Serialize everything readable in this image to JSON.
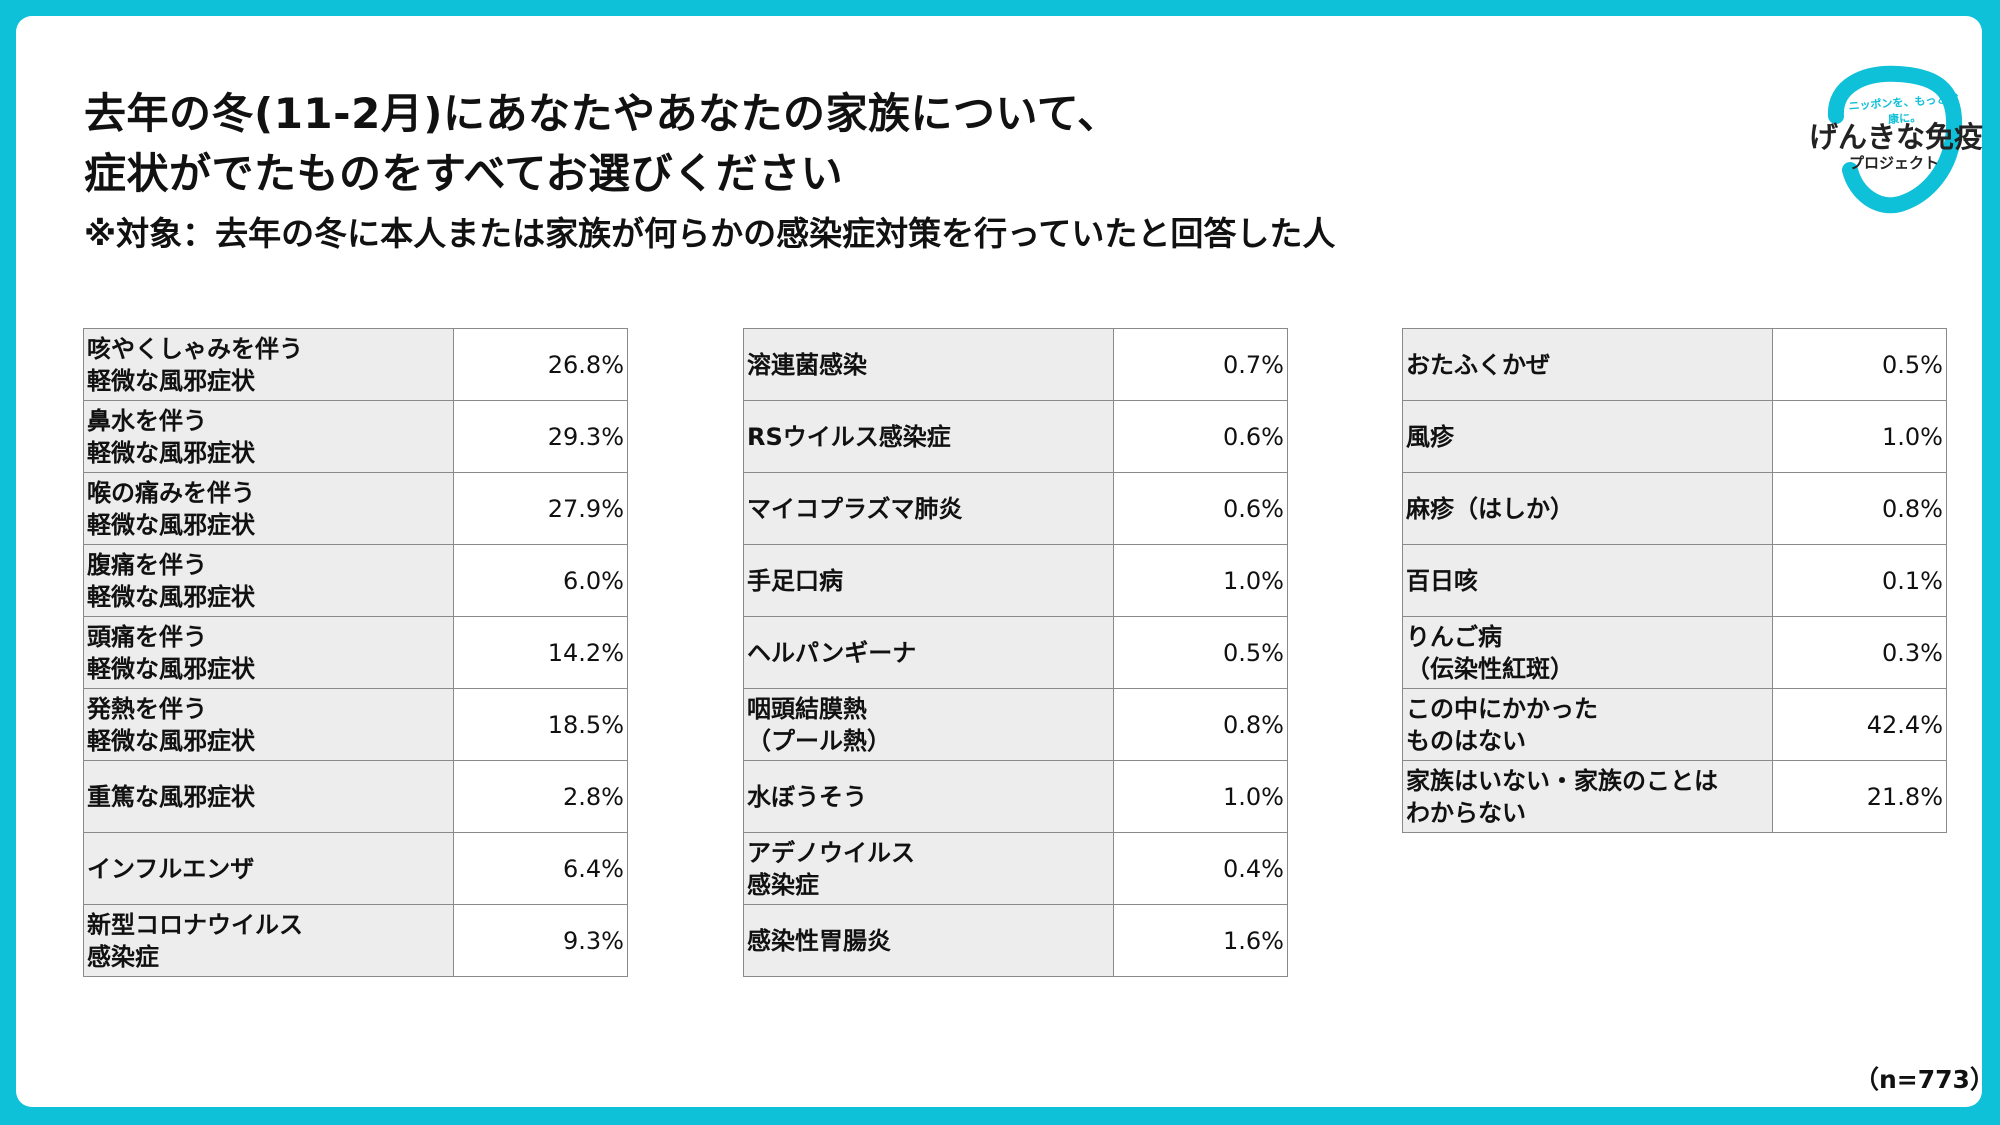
{
  "title": {
    "line1": "去年の冬(11-2月)にあなたやあなたの家族について、",
    "line2": "症状がでたものをすべてお選びください",
    "subtitle": "※対象：去年の冬に本人または家族が何らかの感染症対策を行っていたと回答した人"
  },
  "logo": {
    "tagline": "ニッポンを、もっと健康に。",
    "name": "げんきな免疫",
    "sub": "プロジェクト",
    "color": "#0ec0d8"
  },
  "tables": [
    {
      "rows": [
        {
          "label": "咳やくしゃみを伴う\n軽微な風邪症状",
          "value": "26.8%"
        },
        {
          "label": "鼻水を伴う\n軽微な風邪症状",
          "value": "29.3%"
        },
        {
          "label": "喉の痛みを伴う\n軽微な風邪症状",
          "value": "27.9%"
        },
        {
          "label": "腹痛を伴う\n軽微な風邪症状",
          "value": "6.0%"
        },
        {
          "label": "頭痛を伴う\n軽微な風邪症状",
          "value": "14.2%"
        },
        {
          "label": "発熱を伴う\n軽微な風邪症状",
          "value": "18.5%"
        },
        {
          "label": "重篤な風邪症状",
          "value": "2.8%"
        },
        {
          "label": "インフルエンザ",
          "value": "6.4%"
        },
        {
          "label": "新型コロナウイルス\n感染症",
          "value": "9.3%"
        }
      ]
    },
    {
      "rows": [
        {
          "label": "溶連菌感染",
          "value": "0.7%"
        },
        {
          "label": "RSウイルス感染症",
          "value": "0.6%"
        },
        {
          "label": "マイコプラズマ肺炎",
          "value": "0.6%"
        },
        {
          "label": "手足口病",
          "value": "1.0%"
        },
        {
          "label": "ヘルパンギーナ",
          "value": "0.5%"
        },
        {
          "label": "咽頭結膜熱\n（プール熱）",
          "value": "0.8%"
        },
        {
          "label": "水ぼうそう",
          "value": "1.0%"
        },
        {
          "label": "アデノウイルス\n感染症",
          "value": "0.4%"
        },
        {
          "label": "感染性胃腸炎",
          "value": "1.6%"
        }
      ]
    },
    {
      "rows": [
        {
          "label": "おたふくかぜ",
          "value": "0.5%"
        },
        {
          "label": "風疹",
          "value": "1.0%"
        },
        {
          "label": "麻疹（はしか）",
          "value": "0.8%"
        },
        {
          "label": "百日咳",
          "value": "0.1%"
        },
        {
          "label": "りんご病\n（伝染性紅斑）",
          "value": "0.3%"
        },
        {
          "label": "この中にかかった\nものはない",
          "value": "42.4%"
        },
        {
          "label": "家族はいない・家族のことは\nわからない",
          "value": "21.8%"
        }
      ]
    }
  ],
  "footer": {
    "sample_size": "（n=773）"
  }
}
